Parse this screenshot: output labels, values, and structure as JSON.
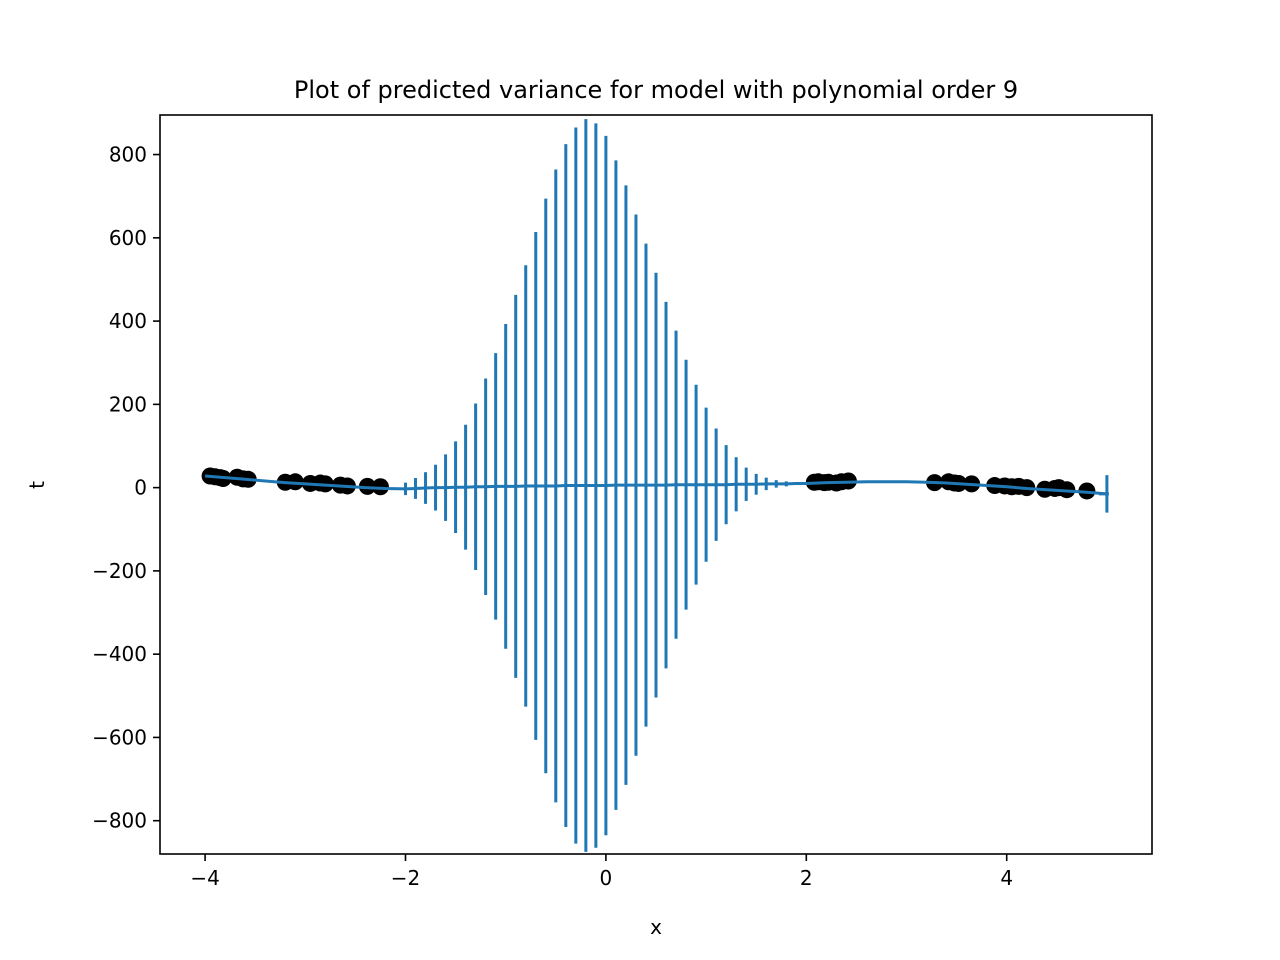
{
  "chart_data": {
    "type": "scatter",
    "title": "Plot of predicted variance for model with polynomial order 9",
    "xlabel": "x",
    "ylabel": "t",
    "xlim": [
      -4.45,
      5.45
    ],
    "ylim": [
      -880,
      895
    ],
    "x_ticks": [
      -4,
      -2,
      0,
      2,
      4
    ],
    "x_tick_labels": [
      "−4",
      "−2",
      "0",
      "2",
      "4"
    ],
    "y_ticks": [
      -800,
      -600,
      -400,
      -200,
      0,
      200,
      400,
      600,
      800
    ],
    "y_tick_labels": [
      "−800",
      "−600",
      "−400",
      "−200",
      "0",
      "200",
      "400",
      "600",
      "800"
    ],
    "grid": false,
    "colors": {
      "series": "#1f77b4",
      "points": "#000000"
    },
    "series": [
      {
        "kind": "scatter",
        "x": [
          -3.95,
          -3.9,
          -3.85,
          -3.82,
          -3.68,
          -3.62,
          -3.57,
          -3.2,
          -3.1,
          -2.95,
          -2.85,
          -2.8,
          -2.65,
          -2.58,
          -2.38,
          -2.25,
          2.08,
          2.12,
          2.18,
          2.22,
          2.3,
          2.35,
          2.42,
          3.28,
          3.42,
          3.48,
          3.52,
          3.65,
          3.88,
          3.98,
          4.05,
          4.12,
          4.2,
          4.38,
          4.48,
          4.52,
          4.6,
          4.8
        ],
        "y": [
          28,
          26,
          24,
          22,
          25,
          21,
          20,
          13,
          14,
          10,
          11,
          9,
          6,
          4,
          3,
          2,
          13,
          14,
          12,
          13,
          11,
          14,
          16,
          12,
          14,
          11,
          10,
          9,
          5,
          4,
          2,
          3,
          0,
          -4,
          -2,
          0,
          -5,
          -8
        ]
      },
      {
        "kind": "line-errorbar",
        "x": [
          -4.0,
          -3.8,
          -3.6,
          -3.4,
          -3.2,
          -3.0,
          -2.8,
          -2.6,
          -2.4,
          -2.2,
          -2.0,
          -1.9,
          -1.8,
          -1.7,
          -1.6,
          -1.5,
          -1.4,
          -1.3,
          -1.2,
          -1.1,
          -1.0,
          -0.9,
          -0.8,
          -0.7,
          -0.6,
          -0.5,
          -0.4,
          -0.3,
          -0.2,
          -0.1,
          0.0,
          0.1,
          0.2,
          0.3,
          0.4,
          0.5,
          0.6,
          0.7,
          0.8,
          0.9,
          1.0,
          1.1,
          1.2,
          1.3,
          1.4,
          1.5,
          1.6,
          1.7,
          1.8,
          1.9,
          2.0,
          2.2,
          2.4,
          2.6,
          2.8,
          3.0,
          3.2,
          3.4,
          3.6,
          3.8,
          4.0,
          4.2,
          4.4,
          4.6,
          4.8,
          5.0
        ],
        "y": [
          28,
          24,
          20,
          16,
          12,
          9,
          6,
          3,
          0,
          -2,
          -3,
          -2,
          -1,
          0,
          0,
          1,
          1,
          2,
          2,
          3,
          3,
          3,
          4,
          4,
          4,
          4,
          5,
          5,
          5,
          5,
          5,
          6,
          6,
          6,
          6,
          6,
          6,
          7,
          7,
          7,
          7,
          7,
          7,
          8,
          8,
          8,
          9,
          9,
          9,
          10,
          10,
          12,
          13,
          14,
          14,
          14,
          13,
          11,
          8,
          5,
          2,
          -2,
          -5,
          -8,
          -11,
          -15
        ],
        "yerr": [
          0,
          0,
          0,
          0,
          0,
          0,
          0,
          0,
          0,
          0,
          15,
          25,
          38,
          55,
          80,
          110,
          150,
          200,
          260,
          320,
          390,
          460,
          530,
          610,
          690,
          760,
          820,
          860,
          880,
          870,
          840,
          780,
          720,
          650,
          580,
          510,
          440,
          370,
          300,
          240,
          185,
          135,
          95,
          65,
          40,
          25,
          15,
          9,
          6,
          3,
          1,
          0,
          0,
          0,
          0,
          0,
          0,
          0,
          0,
          0,
          0,
          0,
          0,
          0,
          0,
          45
        ]
      }
    ]
  }
}
